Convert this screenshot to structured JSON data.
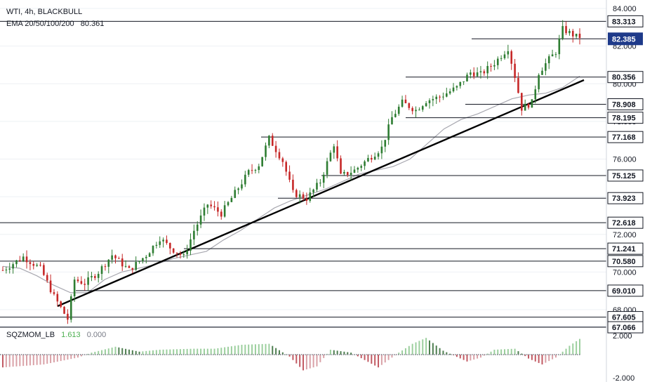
{
  "header": {
    "symbol": "WTI, 4h, BLACKBULL",
    "ema_label": "EMA 20/50/100/200",
    "ema_value": "80.361"
  },
  "indicator": {
    "name": "SQZMOM_LB",
    "value": "1.613",
    "value2": "0.000",
    "ticks": [
      "2.000",
      "-2.000"
    ]
  },
  "chart_data": {
    "type": "candlestick",
    "title": "",
    "xlabel": "",
    "ylabel": "",
    "ylim": [
      66.6,
      84.2
    ],
    "y_ticks": [
      "84.000",
      "82.000",
      "80.000",
      "78.000",
      "76.000",
      "74.000",
      "72.000",
      "70.000",
      "68.000"
    ],
    "current_price": "82.385",
    "levels": [
      "83.313",
      "80.356",
      "78.908",
      "78.195",
      "77.168",
      "75.125",
      "73.923",
      "72.618",
      "71.241",
      "70.580",
      "69.010",
      "67.605",
      "67.066"
    ],
    "anchors": [
      [
        0,
        70.1
      ],
      [
        6,
        70.8
      ],
      [
        11,
        70.2
      ],
      [
        15,
        68.7
      ],
      [
        19,
        67.5
      ],
      [
        21,
        69.6
      ],
      [
        24,
        69.4
      ],
      [
        28,
        70.0
      ],
      [
        32,
        70.9
      ],
      [
        37,
        70.1
      ],
      [
        42,
        70.9
      ],
      [
        46,
        71.8
      ],
      [
        49,
        71.3
      ],
      [
        53,
        70.8
      ],
      [
        56,
        72.2
      ],
      [
        60,
        73.6
      ],
      [
        64,
        73.1
      ],
      [
        68,
        74.2
      ],
      [
        72,
        75.3
      ],
      [
        75,
        75.7
      ],
      [
        78,
        77.1
      ],
      [
        82,
        75.9
      ],
      [
        85,
        74.2
      ],
      [
        89,
        73.9
      ],
      [
        93,
        74.8
      ],
      [
        97,
        76.8
      ],
      [
        99,
        75.1
      ],
      [
        103,
        75.4
      ],
      [
        107,
        76.0
      ],
      [
        111,
        76.6
      ],
      [
        114,
        78.2
      ],
      [
        117,
        79.0
      ],
      [
        121,
        78.6
      ],
      [
        124,
        79.1
      ],
      [
        128,
        79.3
      ],
      [
        133,
        79.8
      ],
      [
        137,
        80.6
      ],
      [
        140,
        80.5
      ],
      [
        144,
        81.1
      ],
      [
        148,
        81.9
      ],
      [
        150,
        80.4
      ],
      [
        152,
        78.7
      ],
      [
        155,
        79.0
      ],
      [
        157,
        80.6
      ],
      [
        160,
        81.3
      ],
      [
        162,
        81.7
      ],
      [
        164,
        82.9
      ],
      [
        166,
        82.7
      ],
      [
        168,
        82.5
      ]
    ],
    "series": [
      {
        "values": [
          70.3,
          70.2,
          69.8,
          69.3,
          68.9,
          68.9,
          69.6,
          70.0,
          70.2,
          70.4,
          70.7,
          70.9,
          71.1,
          71.7,
          72.2,
          72.8,
          73.4,
          73.8,
          74.1,
          74.4,
          74.8,
          75.2,
          75.4,
          75.6,
          76.0,
          76.8,
          77.6,
          78.1,
          78.4,
          78.8,
          79.2,
          79.4,
          79.5,
          79.8,
          80.4
        ]
      }
    ],
    "squeeze_momentum": {
      "range": [
        -2.5,
        2.5
      ],
      "anchors": [
        [
          0,
          -1.3
        ],
        [
          12,
          -1.0
        ],
        [
          22,
          -0.3
        ],
        [
          26,
          0.2
        ],
        [
          33,
          0.8
        ],
        [
          40,
          0.3
        ],
        [
          46,
          0.5
        ],
        [
          56,
          0.6
        ],
        [
          62,
          0.6
        ],
        [
          70,
          1.0
        ],
        [
          78,
          1.1
        ],
        [
          84,
          -0.2
        ],
        [
          88,
          -1.6
        ],
        [
          92,
          -1.2
        ],
        [
          96,
          0.5
        ],
        [
          102,
          0.2
        ],
        [
          110,
          -1.3
        ],
        [
          116,
          0.2
        ],
        [
          120,
          1.1
        ],
        [
          124,
          1.7
        ],
        [
          129,
          0.4
        ],
        [
          136,
          -0.7
        ],
        [
          140,
          -0.3
        ],
        [
          144,
          0.5
        ],
        [
          150,
          0.6
        ],
        [
          154,
          -0.4
        ],
        [
          158,
          -1.0
        ],
        [
          162,
          -0.3
        ],
        [
          166,
          0.9
        ],
        [
          169,
          1.6
        ]
      ]
    }
  }
}
